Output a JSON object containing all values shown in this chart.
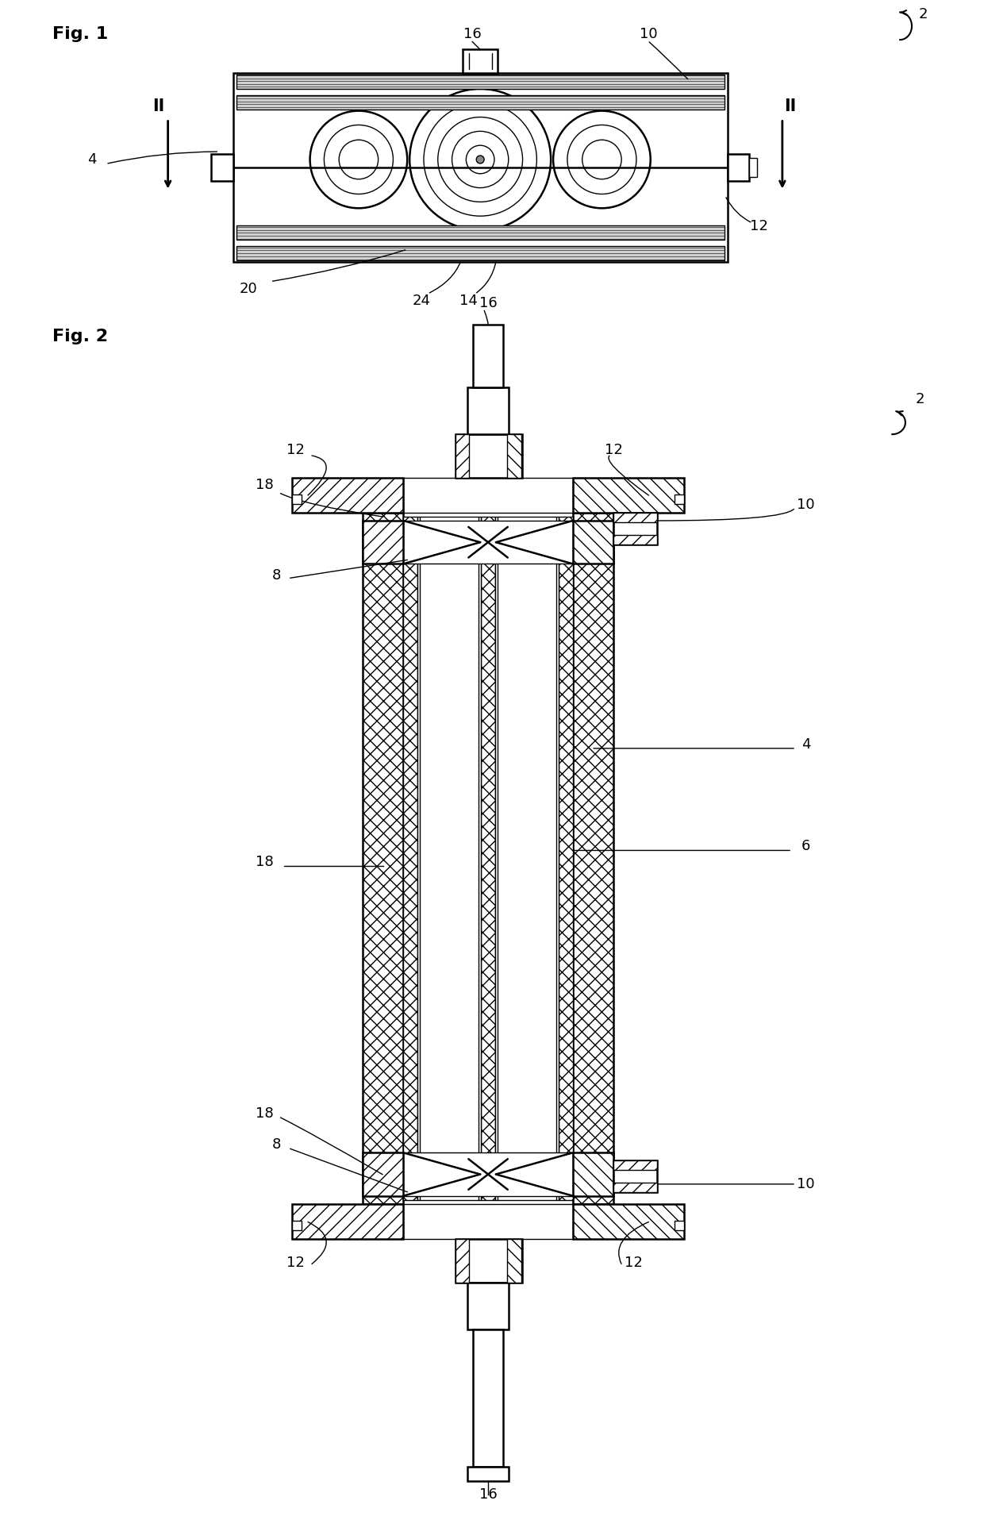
{
  "bg_color": "#ffffff",
  "black": "#000000",
  "gray_hatch": "#e8e8e8",
  "fig1_label": "Fig. 1",
  "fig2_label": "Fig. 2",
  "font_size_label": 16,
  "font_size_ref": 13,
  "lw_main": 1.8,
  "lw_thin": 1.0,
  "lw_detail": 0.7
}
